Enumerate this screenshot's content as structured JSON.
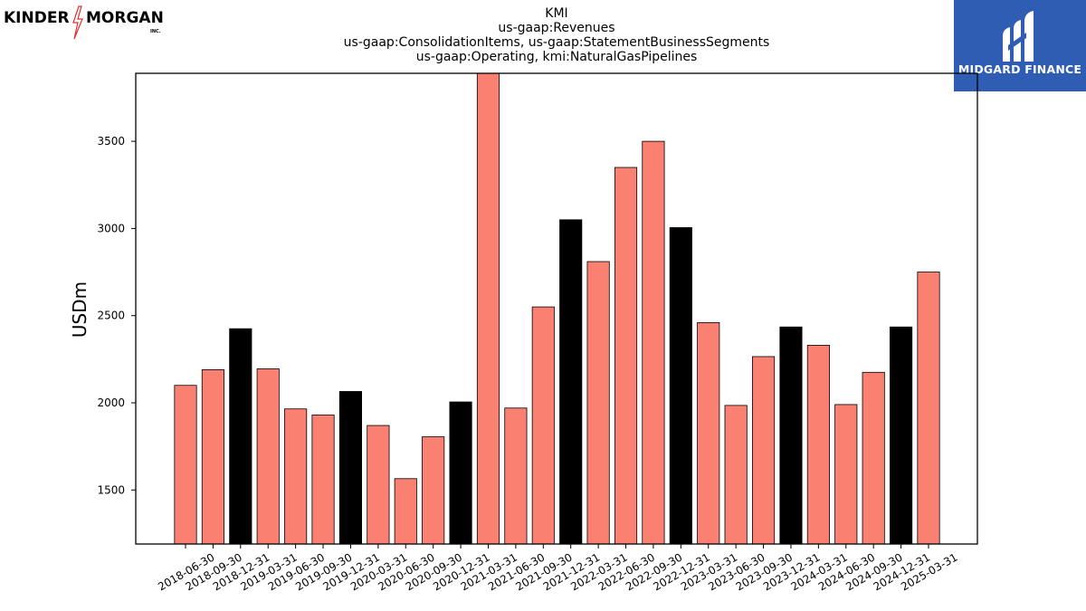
{
  "brand": {
    "kinder_left": "KINDER",
    "kinder_right": "MORGAN",
    "kinder_inc": "INC.",
    "midgard": "MIDGARD FINANCE"
  },
  "colors": {
    "bar_default": "#fa8072",
    "bar_highlight": "#000000",
    "midgard_bg": "#2f5db4",
    "bolt": "#e03030"
  },
  "chart_data": {
    "type": "bar",
    "title_lines": [
      "KMI",
      "us-gaap:Revenues",
      "us-gaap:ConsolidationItems, us-gaap:StatementBusinessSegments",
      "us-gaap:Operating, kmi:NaturalGasPipelines"
    ],
    "xlabel": "",
    "ylabel": "USDm",
    "ylim": [
      1190,
      3890
    ],
    "yticks": [
      1500,
      2000,
      2500,
      3000,
      3500
    ],
    "grid": false,
    "categories": [
      "2018-06-30",
      "2018-09-30",
      "2018-12-31",
      "2019-03-31",
      "2019-06-30",
      "2019-09-30",
      "2019-12-31",
      "2020-03-31",
      "2020-06-30",
      "2020-09-30",
      "2020-12-31",
      "2021-03-31",
      "2021-06-30",
      "2021-09-30",
      "2021-12-31",
      "2022-03-31",
      "2022-06-30",
      "2022-09-30",
      "2022-12-31",
      "2023-03-31",
      "2023-06-30",
      "2023-09-30",
      "2023-12-31",
      "2024-03-31",
      "2024-06-30",
      "2024-09-30",
      "2024-12-31",
      "2025-03-31"
    ],
    "values": [
      2100,
      2190,
      2425,
      2195,
      1965,
      1930,
      2065,
      1870,
      1565,
      1805,
      2005,
      3900,
      1970,
      2550,
      3050,
      2810,
      3350,
      3500,
      3005,
      2460,
      1985,
      2265,
      2435,
      2330,
      1990,
      2175,
      2435,
      2750
    ],
    "highlight": [
      false,
      false,
      true,
      false,
      false,
      false,
      true,
      false,
      false,
      false,
      true,
      false,
      false,
      false,
      true,
      false,
      false,
      false,
      true,
      false,
      false,
      false,
      true,
      false,
      false,
      false,
      true,
      false
    ]
  }
}
